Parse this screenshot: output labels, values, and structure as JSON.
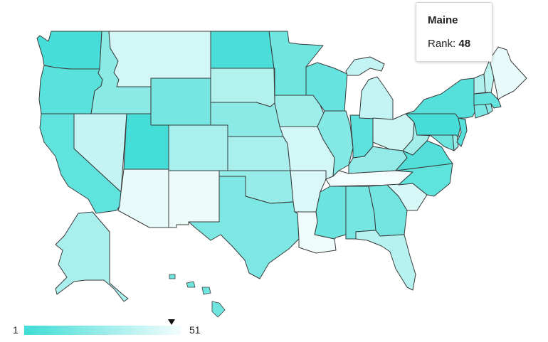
{
  "tooltip": {
    "state": "Maine",
    "rank_label": "Rank:",
    "rank_value": "48"
  },
  "legend": {
    "min_label": "1",
    "max_label": "51",
    "color_low": "#40dcd6",
    "color_high": "#f3fdfd",
    "hover_rank": 48
  },
  "state_ranks": {
    "WA": 3,
    "OR": 8,
    "CA": 10,
    "NV": 38,
    "ID": 22,
    "MT": 42,
    "WY": 16,
    "UT": 2,
    "AZ": 48,
    "CO": 30,
    "NM": 49,
    "ND": 4,
    "SD": 33,
    "NE": 22,
    "KS": 30,
    "OK": 25,
    "TX": 18,
    "MN": 14,
    "IA": 27,
    "MO": 42,
    "AR": 44,
    "LA": 50,
    "WI": 12,
    "IL": 20,
    "IN": 9,
    "MI": 37,
    "OH": 40,
    "KY": 24,
    "TN": 51,
    "MS": 13,
    "AL": 16,
    "GA": 15,
    "FL": 34,
    "SC": 43,
    "NC": 10,
    "VA": 6,
    "WV": 28,
    "PA": 3,
    "NY": 7,
    "NJ": 7,
    "DE": 24,
    "MD": 14,
    "VT": 32,
    "NH": 36,
    "ME": 48,
    "MA": 11,
    "CT": 17,
    "RI": 22,
    "AK": 30,
    "HI": 14
  }
}
